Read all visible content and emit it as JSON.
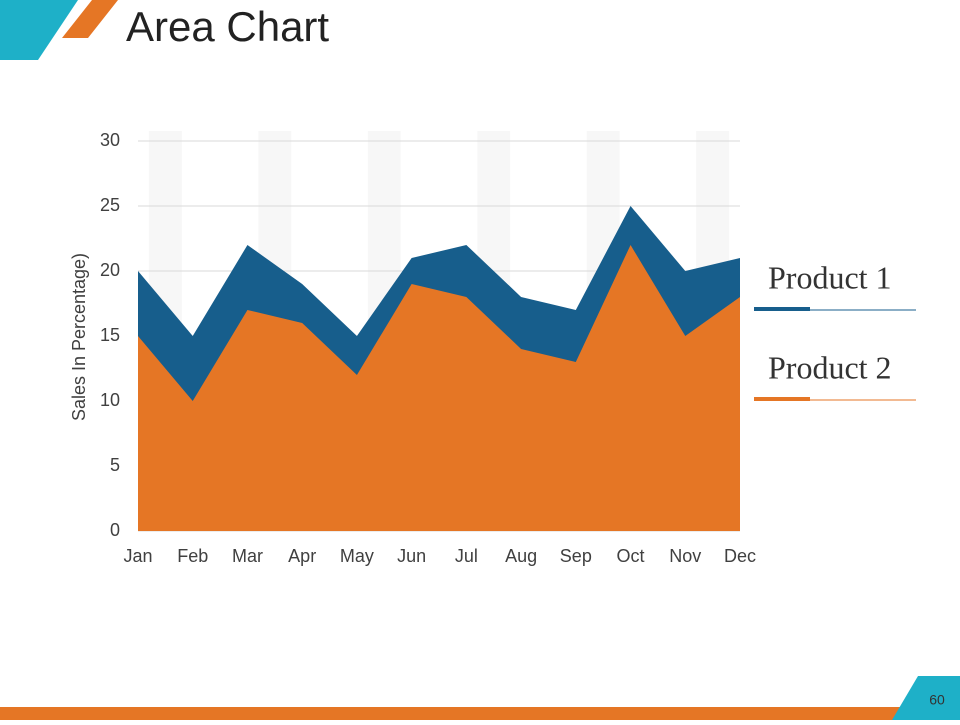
{
  "page_number": "60",
  "chart_data": {
    "type": "area",
    "title": "Area Chart",
    "y_label": "Sales In Percentage)",
    "categories": [
      "Jan",
      "Feb",
      "Mar",
      "Apr",
      "May",
      "Jun",
      "Jul",
      "Aug",
      "Sep",
      "Oct",
      "Nov",
      "Dec"
    ],
    "series": [
      {
        "name": "Product 1",
        "color": "#175e8c",
        "values": [
          20,
          15,
          22,
          19,
          15,
          21,
          22,
          18,
          17,
          25,
          20,
          21
        ]
      },
      {
        "name": "Product 2",
        "color": "#e57625",
        "values": [
          15,
          10,
          17,
          16,
          12,
          19,
          18,
          14,
          13,
          22,
          15,
          18
        ]
      }
    ],
    "ylim": [
      0,
      30
    ],
    "yticks": [
      0,
      5,
      10,
      15,
      20,
      25,
      30
    ],
    "grid": true,
    "legend": "right"
  }
}
